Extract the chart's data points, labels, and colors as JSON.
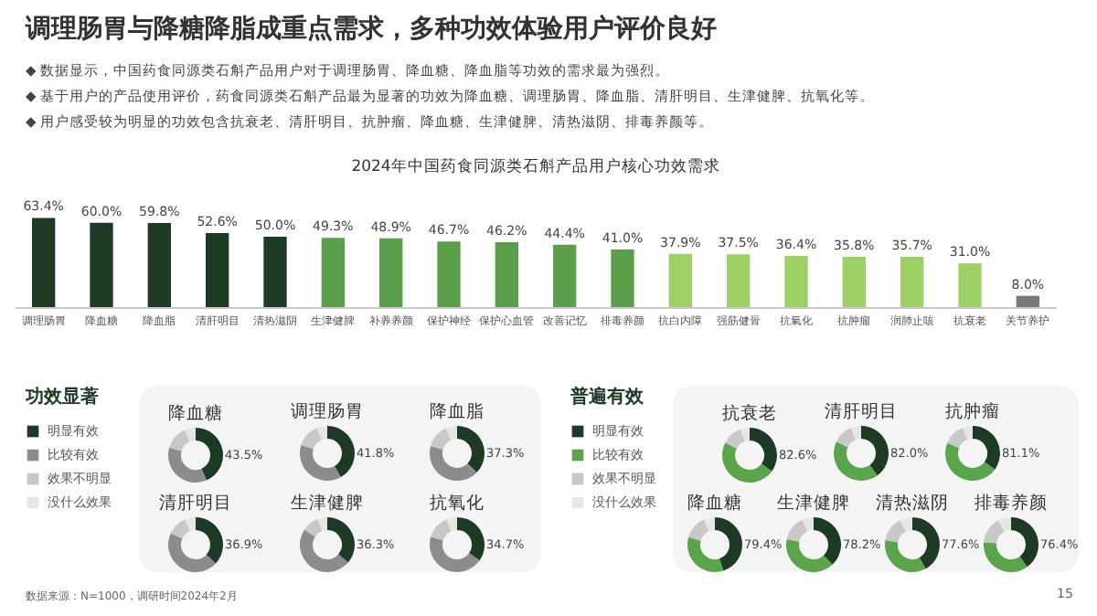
{
  "chart_data": [
    {
      "type": "bar",
      "title": "调理肠胃与降糖降脂成重点需求，多种功效体验用户评价良好",
      "subtitle": "2024年中国药食同源类石斛产品用户核心功效需求",
      "categories": [
        "调理肠胃",
        "降血糖",
        "降血脂",
        "清肝明目",
        "清热滋阴",
        "生津健脾",
        "补养养颜",
        "保护神经",
        "保护心血管",
        "改善记忆",
        "排毒养颜",
        "抗白内障",
        "强筋健骨",
        "抗氧化",
        "抗肿瘤",
        "润肺止咳",
        "抗衰老",
        "关节养护"
      ],
      "values": [
        63.4,
        60.0,
        59.8,
        52.6,
        50.0,
        49.3,
        48.9,
        46.7,
        46.2,
        44.4,
        41.0,
        37.9,
        37.5,
        36.4,
        35.8,
        35.7,
        31.0,
        8.0
      ],
      "value_labels": [
        "63.4%",
        "60.0%",
        "59.8%",
        "52.6%",
        "50.0%",
        "49.3%",
        "48.9%",
        "46.7%",
        "46.2%",
        "44.4%",
        "41.0%",
        "37.9%",
        "37.5%",
        "36.4%",
        "35.8%",
        "35.7%",
        "31.0%",
        "8.0%"
      ],
      "colors": [
        "#1d3b24",
        "#1d3b24",
        "#1d3b24",
        "#1d3b24",
        "#1d3b24",
        "#5b9f4c",
        "#5b9f4c",
        "#5b9f4c",
        "#5b9f4c",
        "#5b9f4c",
        "#5b9f4c",
        "#9fcf67",
        "#9fcf67",
        "#9fcf67",
        "#9fcf67",
        "#9fcf67",
        "#9fcf67",
        "#7a7a7a"
      ],
      "annotations": [
        "◆ 数据显示，中国药食同源类石斛产品用户对于调理肠胃、降血糖、降血脂等功效的需求最为强烈。",
        "◆ 基于用户的产品使用评价，药食同源类石斛产品最为显著的功效为降血糖、调理肠胃、降血脂、清肝明目、生津健脾、抗氧化等。",
        "◆ 用户感受较为明显的功效包含抗衰老、清肝明目、抗肿瘤、降血糖、生津健脾、清热滋阴、排毒养颜等。",
        "数据来源：N=1000，调研时间2024年2月",
        "15"
      ]
    },
    {
      "type": "donut",
      "title": "降血糖",
      "legend": "left",
      "legend_title": "功效显著",
      "categories": [
        "明显有效",
        "比较有效",
        "效果不明显",
        "没什么效果"
      ],
      "values": [
        43.5,
        36,
        14,
        6.5
      ],
      "colors": [
        "#1d3b24",
        "#8c8c8c",
        "#c8c8c8",
        "#e6e6e6"
      ],
      "value_labels": [
        "43.5%",
        null,
        null,
        null
      ]
    },
    {
      "type": "donut",
      "title": "调理肠胃",
      "values": [
        41.8,
        38,
        14,
        6.2
      ],
      "colors": [
        "#1d3b24",
        "#8c8c8c",
        "#c8c8c8",
        "#e6e6e6"
      ],
      "value_labels": [
        "41.8%",
        null,
        null,
        null
      ]
    },
    {
      "type": "donut",
      "title": "降血脂",
      "values": [
        37.3,
        42,
        14,
        6.7
      ],
      "colors": [
        "#1d3b24",
        "#8c8c8c",
        "#c8c8c8",
        "#e6e6e6"
      ],
      "value_labels": [
        "37.3%",
        null,
        null,
        null
      ]
    },
    {
      "type": "donut",
      "title": "清肝明目",
      "values": [
        36.9,
        45,
        12,
        6.1
      ],
      "colors": [
        "#1d3b24",
        "#8c8c8c",
        "#c8c8c8",
        "#e6e6e6"
      ],
      "value_labels": [
        "36.9%",
        null,
        null,
        null
      ]
    },
    {
      "type": "donut",
      "title": "生津健脾",
      "values": [
        36.3,
        48,
        10,
        5.7
      ],
      "colors": [
        "#1d3b24",
        "#8c8c8c",
        "#c8c8c8",
        "#e6e6e6"
      ],
      "value_labels": [
        "36.3%",
        null,
        null,
        null
      ]
    },
    {
      "type": "donut",
      "title": "抗氧化",
      "values": [
        34.7,
        45,
        14,
        6.3
      ],
      "colors": [
        "#1d3b24",
        "#8c8c8c",
        "#c8c8c8",
        "#e6e6e6"
      ],
      "value_labels": [
        "34.7%",
        null,
        null,
        null
      ]
    },
    {
      "type": "donut",
      "title": "抗衰老",
      "legend": "left",
      "legend_title": "普遍有效",
      "categories": [
        "明显有效",
        "比较有效",
        "效果不明显",
        "没什么效果"
      ],
      "values": [
        35,
        47.6,
        12,
        5.4
      ],
      "colors": [
        "#1d3b24",
        "#5aa54b",
        "#c8c8c8",
        "#e6e6e6"
      ],
      "annotations": [
        "82.6%"
      ]
    },
    {
      "type": "donut",
      "title": "清肝明目",
      "values": [
        40,
        42,
        12,
        6
      ],
      "colors": [
        "#1d3b24",
        "#5aa54b",
        "#c8c8c8",
        "#e6e6e6"
      ],
      "annotations": [
        "82.0%"
      ]
    },
    {
      "type": "donut",
      "title": "抗肿瘤",
      "values": [
        35,
        46.1,
        13,
        5.9
      ],
      "colors": [
        "#1d3b24",
        "#5aa54b",
        "#c8c8c8",
        "#e6e6e6"
      ],
      "annotations": [
        "81.1%"
      ]
    },
    {
      "type": "donut",
      "title": "降血糖",
      "values": [
        45,
        34.4,
        14,
        6.6
      ],
      "colors": [
        "#1d3b24",
        "#5aa54b",
        "#c8c8c8",
        "#e6e6e6"
      ],
      "annotations": [
        "79.4%"
      ]
    },
    {
      "type": "donut",
      "title": "生津健脾",
      "values": [
        38,
        40.2,
        15,
        6.8
      ],
      "colors": [
        "#1d3b24",
        "#5aa54b",
        "#c8c8c8",
        "#e6e6e6"
      ],
      "annotations": [
        "78.2%"
      ]
    },
    {
      "type": "donut",
      "title": "清热滋阴",
      "values": [
        42,
        35.6,
        15,
        7.4
      ],
      "colors": [
        "#1d3b24",
        "#5aa54b",
        "#c8c8c8",
        "#e6e6e6"
      ],
      "annotations": [
        "77.6%"
      ]
    },
    {
      "type": "donut",
      "title": "排毒养颜",
      "values": [
        40,
        36.4,
        16,
        7.6
      ],
      "colors": [
        "#1d3b24",
        "#5aa54b",
        "#c8c8c8",
        "#e6e6e6"
      ],
      "annotations": [
        "76.4%"
      ]
    }
  ]
}
